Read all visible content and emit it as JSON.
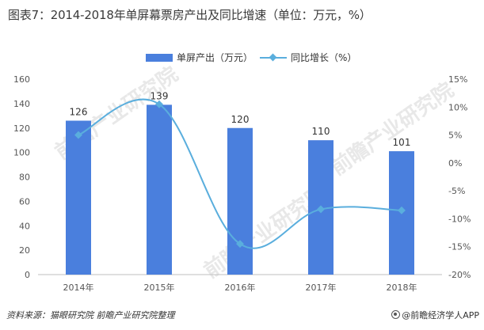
{
  "title": "图表7：2014-2018年单屏幕票房产出及同比增速（单位：万元，%）",
  "source": "资料来源：猫眼研究院 前瞻产业研究院整理",
  "brand": "@前瞻经济学人APP",
  "watermark": "前瞻产业研究院",
  "colors": {
    "bar": "#4a7fdd",
    "line": "#5aaedd",
    "axis_text": "#555555",
    "label_text": "#333333"
  },
  "chart_data": {
    "type": "bar",
    "categories": [
      "2014年",
      "2015年",
      "2016年",
      "2017年",
      "2018年"
    ],
    "series": [
      {
        "name": "单屏产出（万元）",
        "type": "bar",
        "axis": "left",
        "values": [
          126,
          139,
          120,
          110,
          101
        ],
        "data_labels": [
          "126",
          "139",
          "120",
          "110",
          "101"
        ]
      },
      {
        "name": "同比增长（%）",
        "type": "line",
        "axis": "right",
        "smooth": true,
        "values": [
          5.0,
          10.5,
          -14.5,
          -8.3,
          -8.5
        ]
      }
    ],
    "y_left": {
      "min": 0,
      "max": 160,
      "step": 20,
      "ticks": [
        "0",
        "20",
        "40",
        "60",
        "80",
        "100",
        "120",
        "140",
        "160"
      ]
    },
    "y_right": {
      "min": -20,
      "max": 15,
      "step": 5,
      "ticks": [
        "-20%",
        "-15%",
        "-10%",
        "-5%",
        "0%",
        "5%",
        "10%",
        "15%"
      ]
    },
    "legend_position": "top-center",
    "grid": false
  }
}
